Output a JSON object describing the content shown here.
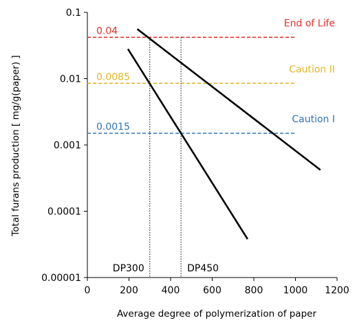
{
  "chart_data": {
    "type": "line",
    "title": "",
    "xlabel": "Average degree of polymerization of paper",
    "ylabel": "Total furans production [ mg/g(paper) ]",
    "xlim": [
      0,
      1200
    ],
    "ylim": [
      1e-05,
      0.1
    ],
    "yscale": "log",
    "x_ticks": [
      0,
      200,
      400,
      600,
      800,
      1000,
      1200
    ],
    "y_ticks": [
      {
        "value": 0.1,
        "label": "0.1"
      },
      {
        "value": 0.01,
        "label": "0.01"
      },
      {
        "value": 0.001,
        "label": "0.001"
      },
      {
        "value": 0.0001,
        "label": "0.0001"
      },
      {
        "value": 1e-05,
        "label": "0.00001"
      }
    ],
    "grid": false,
    "series": [
      {
        "color": "#000000",
        "points": [
          [
            240,
            0.056
          ],
          [
            1120,
            0.00042
          ]
        ]
      },
      {
        "color": "#000000",
        "points": [
          [
            195,
            0.028
          ],
          [
            770,
            3.8e-05
          ]
        ]
      }
    ],
    "thresholds": [
      {
        "name": "End of Life",
        "value_label": "0.04",
        "value": 0.042,
        "color": "#e8302a",
        "x_start": 0,
        "x_end": 1000
      },
      {
        "name": "Caution II",
        "value_label": "0.0085",
        "value": 0.0085,
        "color": "#e6b422",
        "x_start": 0,
        "x_end": 1000
      },
      {
        "name": "Caution I",
        "value_label": "0.0015",
        "value": 0.0015,
        "color": "#2e75b6",
        "x_start": 0,
        "x_end": 1000
      }
    ],
    "markers": [
      {
        "label": "DP300",
        "x": 300
      },
      {
        "label": "DP450",
        "x": 450
      }
    ]
  }
}
